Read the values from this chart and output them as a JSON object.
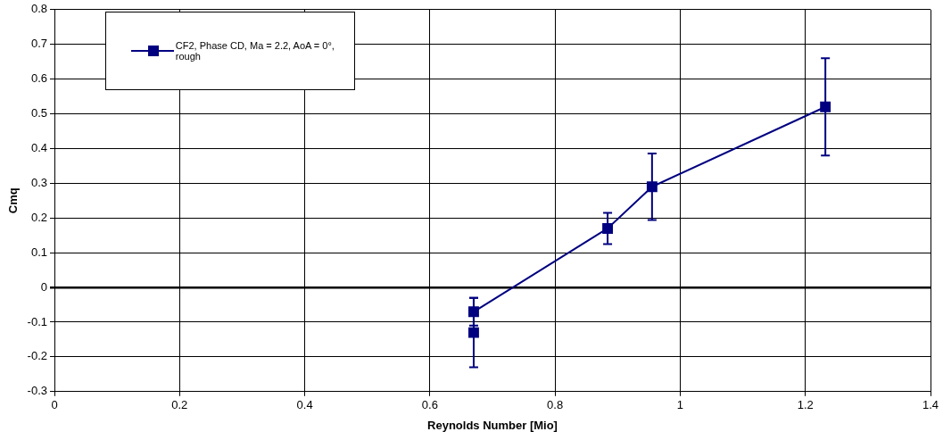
{
  "chart_data": {
    "type": "line",
    "xlabel": "Reynolds Number [Mio]",
    "ylabel": "Cmq",
    "x": [
      0.67,
      0.67,
      0.884,
      0.955,
      1.232
    ],
    "series": [
      {
        "name": "CF2, Phase CD, Ma = 2.2, AoA = 0°, rough",
        "color": "#000080",
        "values": [
          -0.13,
          -0.07,
          0.17,
          0.29,
          0.52
        ],
        "errors": [
          0.1,
          0.04,
          0.045,
          0.096,
          0.14
        ]
      }
    ],
    "xlim": [
      0,
      1.4
    ],
    "xticks": [
      0,
      0.2,
      0.4,
      0.6,
      0.8,
      1,
      1.2,
      1.4
    ],
    "ylim": [
      -0.3,
      0.8
    ],
    "yticks": [
      -0.3,
      -0.2,
      -0.1,
      0,
      0.1,
      0.2,
      0.3,
      0.4,
      0.5,
      0.6,
      0.7,
      0.8
    ],
    "grid": true,
    "legend": "top left",
    "marker": "square",
    "line_style": "solid"
  }
}
